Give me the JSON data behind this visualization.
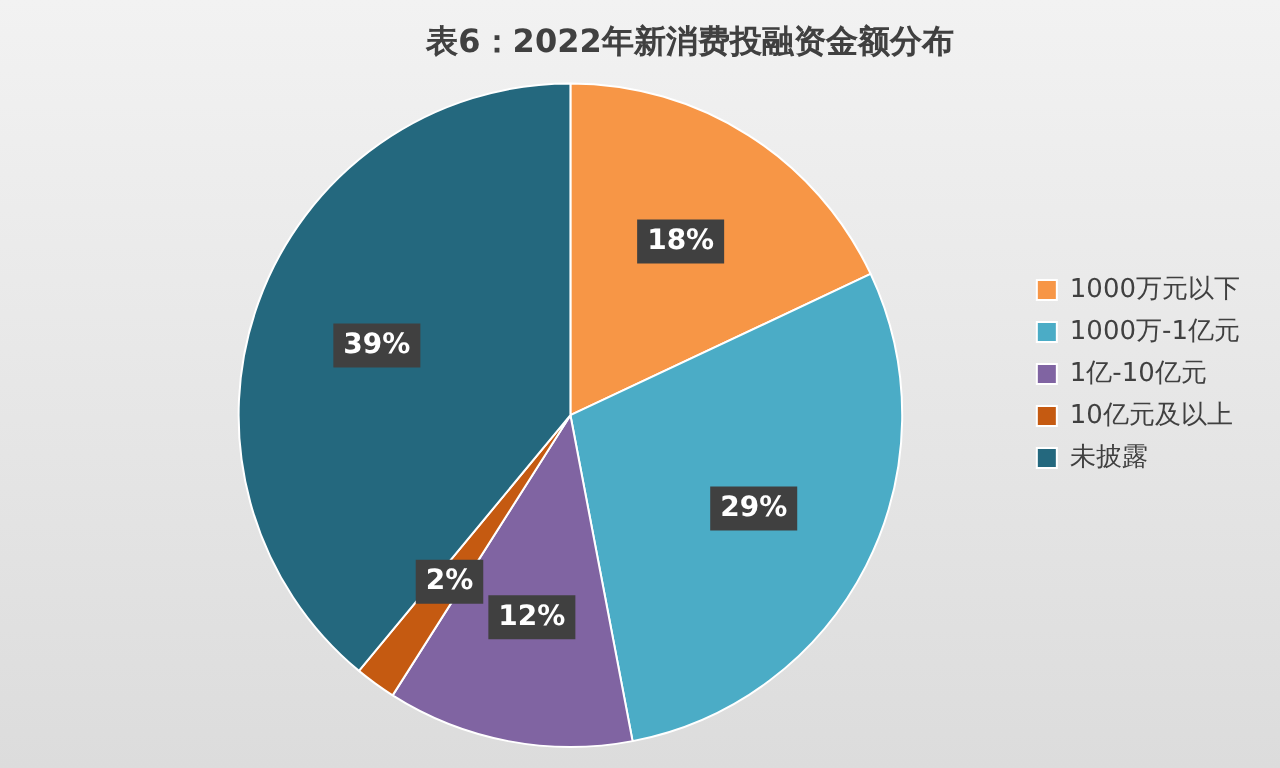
{
  "chart_data": {
    "type": "pie",
    "title": "表6：2022年新消费投融资金额分布",
    "categories": [
      "1000万元以下",
      "1000万-1亿元",
      "1亿-10亿元",
      "10亿元及以上",
      "未披露"
    ],
    "values": [
      18,
      29,
      12,
      2,
      39
    ],
    "colors": [
      "#f79646",
      "#4bacc6",
      "#8064a2",
      "#c55a11",
      "#24687e"
    ],
    "value_labels": [
      "18%",
      "29%",
      "12%",
      "2%",
      "39%"
    ],
    "legend": "right"
  }
}
